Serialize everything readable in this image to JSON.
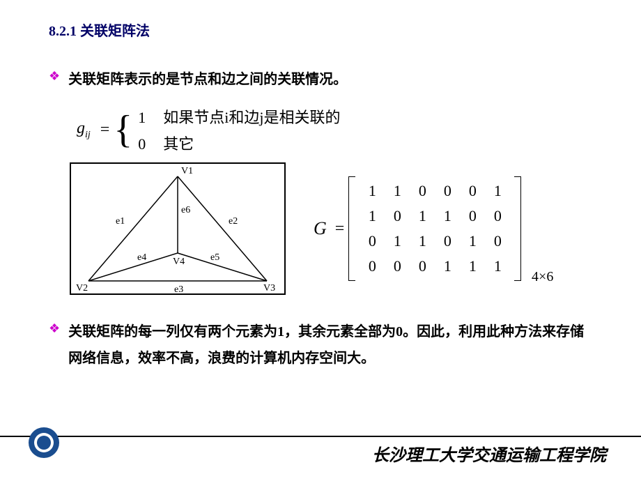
{
  "section": {
    "number": "8.2.1",
    "title": "关联矩阵法"
  },
  "bullet1": "关联矩阵表示的是节点和边之间的关联情况。",
  "formula": {
    "lhs": "g",
    "sub": "ij",
    "eq": "=",
    "case1_val": "1",
    "case1_txt": "如果节点i和边j是相关联的",
    "case2_val": "0",
    "case2_txt": "其它"
  },
  "graph": {
    "nodes": {
      "v1": "V1",
      "v2": "V2",
      "v3": "V3",
      "v4": "V4"
    },
    "edges": {
      "e1": "e1",
      "e2": "e2",
      "e3": "e3",
      "e4": "e4",
      "e5": "e5",
      "e6": "e6"
    },
    "stroke": "#000000",
    "font": "14px serif"
  },
  "matrix": {
    "label": "G",
    "eq": "=",
    "rows": [
      [
        "1",
        "1",
        "0",
        "0",
        "0",
        "1"
      ],
      [
        "1",
        "0",
        "1",
        "1",
        "0",
        "0"
      ],
      [
        "0",
        "1",
        "1",
        "0",
        "1",
        "0"
      ],
      [
        "0",
        "0",
        "0",
        "1",
        "1",
        "1"
      ]
    ],
    "dim": "4×6"
  },
  "bullet2": "关联矩阵的每一列仅有两个元素为1，其余元素全部为0。因此，利用此种方法来存储网络信息，效率不高，浪费的计算机内存空间大。",
  "footer": "长沙理工大学交通运输工程学院",
  "colors": {
    "title": "#000066",
    "bullet": "#cc00cc",
    "logo_outer": "#1a4d8f",
    "logo_inner": "#ffffff"
  }
}
